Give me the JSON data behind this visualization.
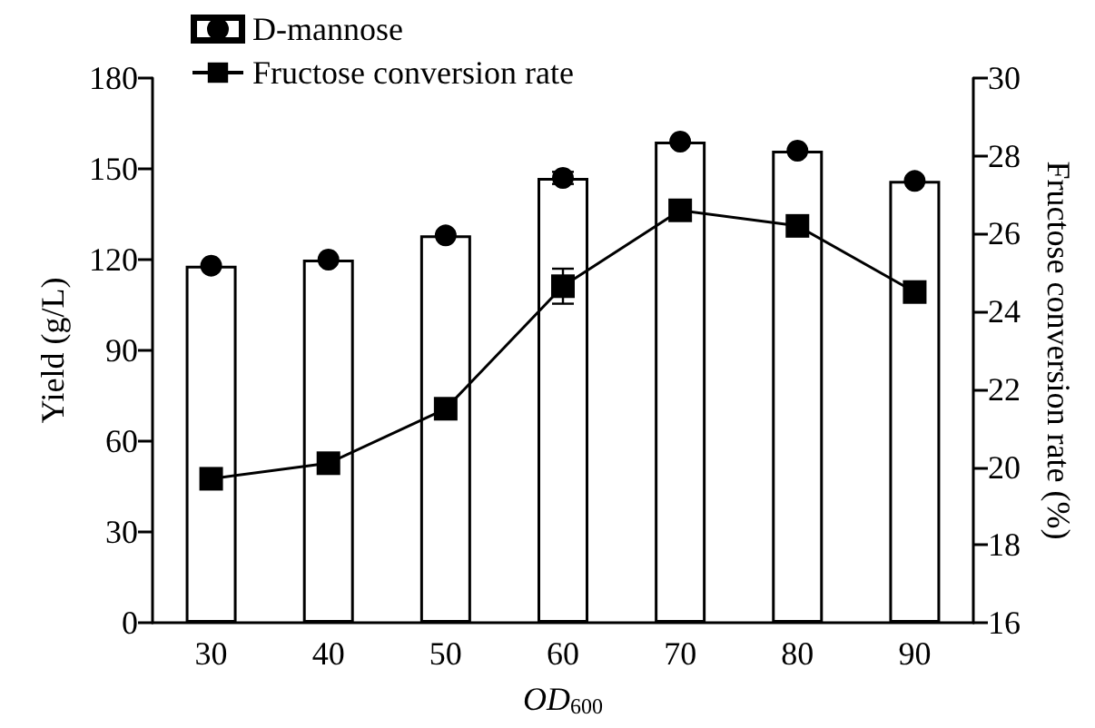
{
  "chart_data": {
    "type": "bar",
    "xlabel": "OD$_{600}$",
    "ylabel": "Yield (g/L)",
    "y2label": "Fructose conversion rate (%)",
    "categories": [
      "30",
      "40",
      "50",
      "60",
      "70",
      "80",
      "90"
    ],
    "series": [
      {
        "name": "D-mannose",
        "color": "#000000",
        "values": [
          118,
          120,
          128,
          147,
          159,
          156,
          146
        ]
      },
      {
        "type": "scatter",
        "x": [
          "30",
          "40",
          "50",
          "60",
          "70",
          "80",
          "90"
        ],
        "color": "#000000",
        "marker": "circle",
        "values": [
          118,
          120,
          128,
          147,
          159,
          156,
          146
        ],
        "errors": [
          null,
          null,
          null,
          2,
          null,
          null,
          null
        ]
      },
      {
        "name": "Fructose conversion rate",
        "type": "line",
        "axis": "y2",
        "color": "#000000",
        "marker": "square",
        "values": [
          19.7,
          20.1,
          21.5,
          24.65,
          26.6,
          26.2,
          24.5
        ],
        "errors": [
          null,
          null,
          null,
          0.45,
          null,
          null,
          null
        ]
      }
    ],
    "ylim": [
      0,
      180
    ],
    "yticks": [
      0,
      30,
      60,
      90,
      120,
      150,
      180
    ],
    "y2lim": [
      16,
      30
    ],
    "y2ticks": [
      16,
      18,
      20,
      22,
      24,
      26,
      28,
      30
    ],
    "grid": false,
    "legend": "top left"
  }
}
